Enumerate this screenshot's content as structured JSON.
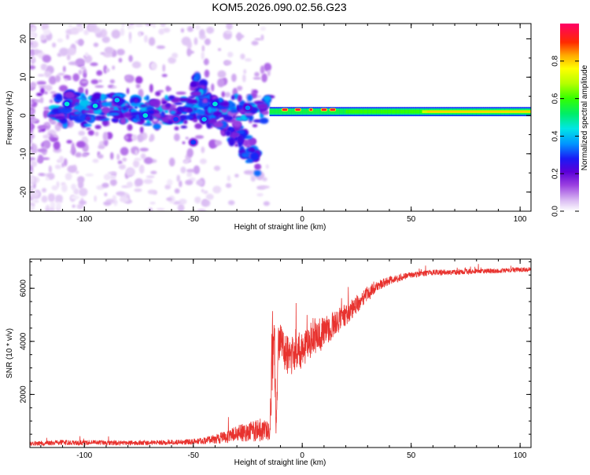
{
  "chart_data": [
    {
      "type": "heatmap",
      "title": "KOM5.2026.090.02.56.G23",
      "xlabel": "Height of straight line (km)",
      "ylabel": "Frequency (Hz)",
      "xlim": [
        -125,
        105
      ],
      "ylim": [
        -25,
        24
      ],
      "xticks": [
        "-100",
        "-50",
        "0",
        "50",
        "100"
      ],
      "xtick_values": [
        -100,
        -50,
        0,
        50,
        100
      ],
      "yticks": [
        "20",
        "10",
        "0",
        "-10",
        "-20"
      ],
      "ytick_values": [
        20,
        10,
        0,
        -10,
        -20
      ],
      "colorbar": {
        "label": "Normalized spectral amplitude",
        "range": [
          0,
          1
        ],
        "ticks": [
          "0.0",
          "0.2",
          "0.4",
          "0.6",
          "0.8"
        ],
        "tick_values": [
          0.0,
          0.2,
          0.4,
          0.6,
          0.8
        ]
      },
      "features": [
        {
          "name": "scattered-low-altitude-energy",
          "x_range": [
            -125,
            -15
          ],
          "freq_range": [
            -25,
            24
          ],
          "amplitude": 0.1
        },
        {
          "name": "main-band-noisy",
          "x_range": [
            -115,
            -15
          ],
          "freq_center": 1.5,
          "freq_halfwidth": 3,
          "amplitude": 0.3
        },
        {
          "name": "hot-spots",
          "points": [
            {
              "x": -108,
              "freq": 3,
              "amp": 0.45
            },
            {
              "x": -95,
              "freq": 2.5,
              "amp": 0.45
            },
            {
              "x": -85,
              "freq": 4,
              "amp": 0.4
            },
            {
              "x": -72,
              "freq": 0,
              "amp": 0.45
            },
            {
              "x": -58,
              "freq": -1,
              "amp": 0.3
            },
            {
              "x": -50,
              "freq": -7,
              "amp": 0.3
            },
            {
              "x": -45,
              "freq": -1,
              "amp": 0.4
            },
            {
              "x": -40,
              "freq": 3,
              "amp": 0.45
            },
            {
              "x": -25,
              "freq": 2,
              "amp": 0.35
            }
          ]
        },
        {
          "name": "descending-arm",
          "x_range": [
            -50,
            -20
          ],
          "freq_range": [
            8,
            -12
          ],
          "amplitude": 0.15
        },
        {
          "name": "stable-carrier",
          "x_range": [
            -15,
            105
          ],
          "freq_center": 1.0,
          "freq_halfwidth": 1.2,
          "amplitude": 0.5
        },
        {
          "name": "carrier-peak-low",
          "x_range": [
            -12,
            15
          ],
          "freq_center": 1.5,
          "amplitude": 0.95
        },
        {
          "name": "carrier-peak-high",
          "x_range": [
            55,
            105
          ],
          "freq_center": 1.0,
          "amplitude": 0.8
        }
      ]
    },
    {
      "type": "line",
      "xlabel": "Height of straight line (km)",
      "ylabel": "SNR (10 * v/v)",
      "xlim": [
        -125,
        105
      ],
      "ylim": [
        0,
        7100
      ],
      "xticks": [
        "-100",
        "-50",
        "0",
        "50",
        "100"
      ],
      "xtick_values": [
        -100,
        -50,
        0,
        50,
        100
      ],
      "yticks": [
        "2000",
        "4000",
        "6000"
      ],
      "ytick_values": [
        2000,
        4000,
        6000
      ],
      "color": "#e8322e",
      "series": [
        {
          "name": "SNR",
          "x": [
            -125,
            -115,
            -110,
            -105,
            -100,
            -95,
            -90,
            -80,
            -70,
            -60,
            -50,
            -45,
            -40,
            -35,
            -30,
            -25,
            -20,
            -17,
            -15,
            -14,
            -13,
            -12,
            -11,
            -10,
            -8,
            -5,
            0,
            5,
            10,
            15,
            20,
            25,
            30,
            35,
            40,
            50,
            60,
            70,
            80,
            90,
            100,
            105
          ],
          "values": [
            150,
            160,
            200,
            170,
            180,
            200,
            170,
            180,
            170,
            200,
            220,
            260,
            320,
            400,
            520,
            600,
            650,
            700,
            400,
            3200,
            5000,
            700,
            3800,
            4000,
            3500,
            3500,
            3700,
            4200,
            4300,
            4700,
            5000,
            5400,
            5800,
            6100,
            6300,
            6500,
            6600,
            6600,
            6650,
            6650,
            6700,
            6700
          ],
          "noise": [
            80,
            90,
            100,
            90,
            100,
            90,
            90,
            90,
            90,
            100,
            110,
            130,
            180,
            240,
            320,
            380,
            420,
            450,
            300,
            1500,
            1800,
            300,
            700,
            700,
            700,
            800,
            700,
            700,
            600,
            500,
            400,
            350,
            300,
            200,
            160,
            110,
            110,
            100,
            100,
            90,
            90,
            90
          ]
        }
      ]
    }
  ]
}
